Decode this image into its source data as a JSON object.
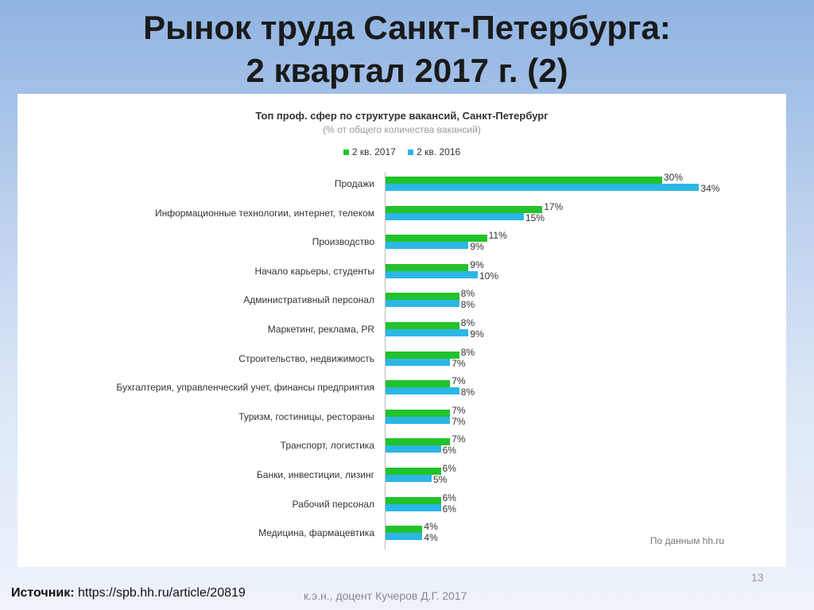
{
  "slide": {
    "title_line1": "Рынок труда Санкт-Петербурга:",
    "title_line2": "2 квартал 2017 г. (2)",
    "page_number": "13",
    "source_label": "Источник:",
    "source_url": "https://spb.hh.ru/article/20819",
    "author": "к.э.н., доцент Кучеров Д.Г. 2017"
  },
  "chart_data": {
    "type": "bar",
    "orientation": "horizontal",
    "title": "Топ проф. сфер по структуре вакансий, Санкт-Петербург",
    "subtitle": "(% от общего количества вакансий)",
    "note": "По данным hh.ru",
    "legend_position": "top",
    "grid": false,
    "xlim": [
      0,
      35
    ],
    "categories": [
      "Продажи",
      "Информационные технологии, интернет, телеком",
      "Производство",
      "Начало карьеры, студенты",
      "Административный персонал",
      "Маркетинг, реклама, PR",
      "Строительство, недвижимость",
      "Бухгалтерия, управленческий учет, финансы предприятия",
      "Туризм, гостиницы, рестораны",
      "Транспорт, логистика",
      "Банки, инвестиции, лизинг",
      "Рабочий персонал",
      "Медицина, фармацевтика"
    ],
    "series": [
      {
        "name": "2 кв. 2017",
        "color": "#22c22b",
        "values": [
          30,
          17,
          11,
          9,
          8,
          8,
          8,
          7,
          7,
          7,
          6,
          6,
          4
        ]
      },
      {
        "name": "2 кв. 2016",
        "color": "#2bb7e6",
        "values": [
          34,
          15,
          9,
          10,
          8,
          9,
          7,
          8,
          7,
          6,
          5,
          6,
          4
        ]
      }
    ]
  }
}
